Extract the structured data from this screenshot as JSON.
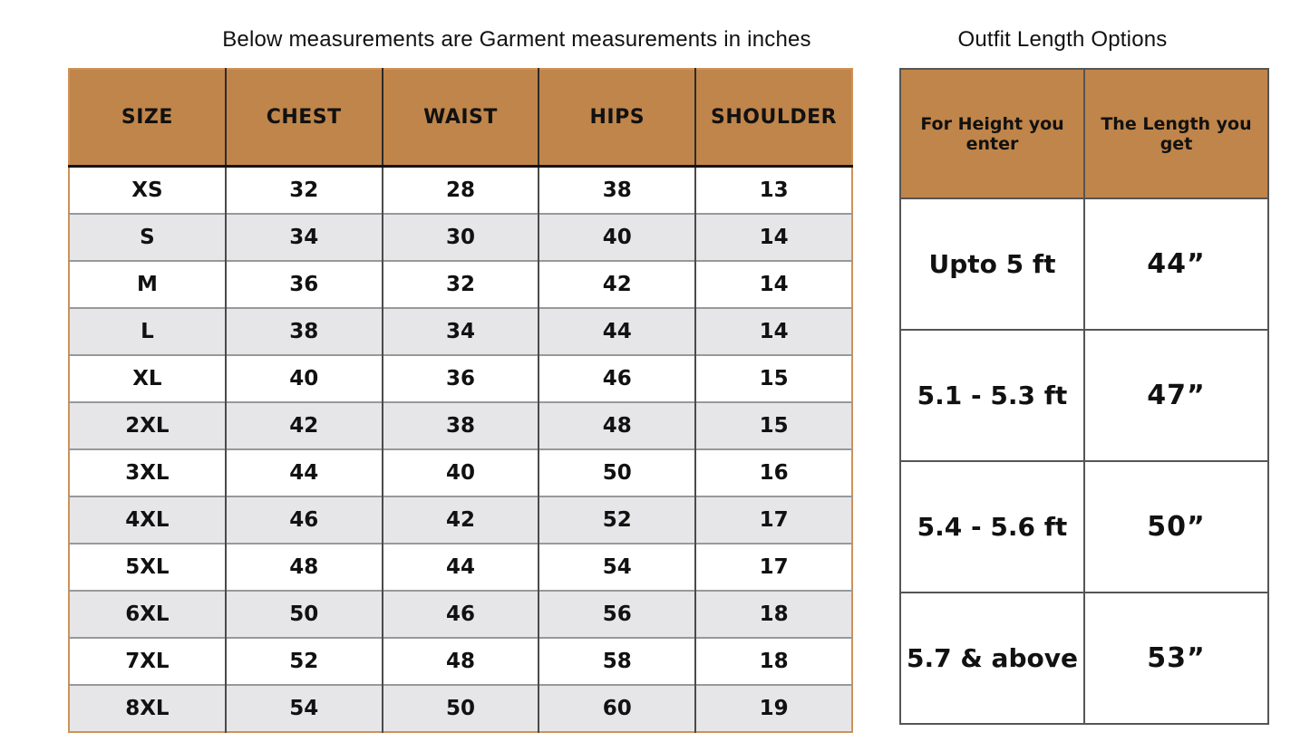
{
  "colors": {
    "page_bg": "#ffffff",
    "text": "#111111",
    "header_bg": "#c0854a",
    "alt_row_bg": "#e6e6e8",
    "left_border": "#cf9257",
    "left_inner": "#4a4a4a",
    "row_line": "#999999",
    "header_underline": "#141414",
    "right_border": "#555555"
  },
  "chart_data": [
    {
      "type": "table",
      "title": "Below measurements are Garment measurements in inches",
      "columns": [
        "SIZE",
        "CHEST",
        "WAIST",
        "HIPS",
        "SHOULDER"
      ],
      "rows": [
        [
          "XS",
          "32",
          "28",
          "38",
          "13"
        ],
        [
          "S",
          "34",
          "30",
          "40",
          "14"
        ],
        [
          "M",
          "36",
          "32",
          "42",
          "14"
        ],
        [
          "L",
          "38",
          "34",
          "44",
          "14"
        ],
        [
          "XL",
          "40",
          "36",
          "46",
          "15"
        ],
        [
          "2XL",
          "42",
          "38",
          "48",
          "15"
        ],
        [
          "3XL",
          "44",
          "40",
          "50",
          "16"
        ],
        [
          "4XL",
          "46",
          "42",
          "52",
          "17"
        ],
        [
          "5XL",
          "48",
          "44",
          "54",
          "17"
        ],
        [
          "6XL",
          "50",
          "46",
          "56",
          "18"
        ],
        [
          "7XL",
          "52",
          "48",
          "58",
          "18"
        ],
        [
          "8XL",
          "54",
          "50",
          "60",
          "19"
        ]
      ],
      "layout_hints": {
        "header_background": "#c0854a",
        "alternating_rows": true,
        "units": "inches"
      }
    },
    {
      "type": "table",
      "title": "Outfit Length Options",
      "columns": [
        "For Height you enter",
        "The Length you get"
      ],
      "rows": [
        [
          "Upto 5 ft",
          "44”"
        ],
        [
          "5.1 - 5.3 ft",
          "47”"
        ],
        [
          "5.4 - 5.6 ft",
          "50”"
        ],
        [
          "5.7 & above",
          "53”"
        ]
      ],
      "layout_hints": {
        "header_background": "#c0854a",
        "alternating_rows": false,
        "units": "inches"
      }
    }
  ]
}
